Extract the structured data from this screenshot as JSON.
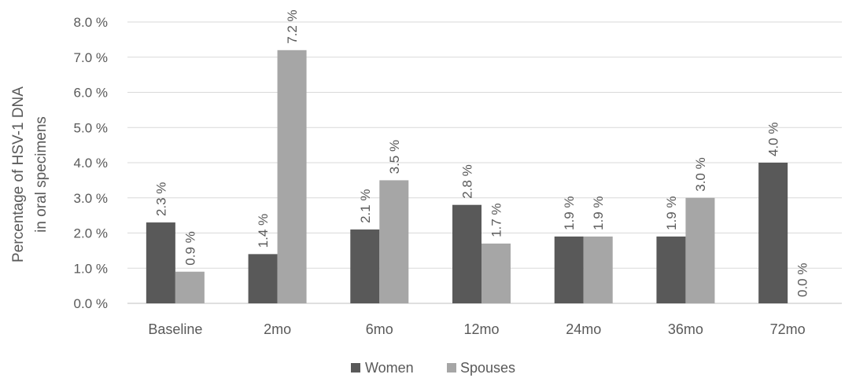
{
  "chart_data": {
    "type": "bar",
    "categories": [
      "Baseline",
      "2mo",
      "6mo",
      "12mo",
      "24mo",
      "36mo",
      "72mo"
    ],
    "series": [
      {
        "name": "Women",
        "color": "#595959",
        "values": [
          2.3,
          1.4,
          2.1,
          2.8,
          1.9,
          1.9,
          4.0
        ],
        "labels": [
          "2.3 %",
          "1.4 %",
          "2.1 %",
          "2.8 %",
          "1.9 %",
          "1.9 %",
          "4.0 %"
        ]
      },
      {
        "name": "Spouses",
        "color": "#a6a6a6",
        "values": [
          0.9,
          7.2,
          3.5,
          1.7,
          1.9,
          3.0,
          0.0
        ],
        "labels": [
          "0.9 %",
          "7.2 %",
          "3.5 %",
          "1.7 %",
          "1.9 %",
          "3.0 %",
          "0.0 %"
        ]
      }
    ],
    "ylabel_lines": [
      "Percentage of HSV-1 DNA",
      "in oral specimens"
    ],
    "ylim": [
      0,
      8
    ],
    "yticks": [
      0,
      1,
      2,
      3,
      4,
      5,
      6,
      7,
      8
    ],
    "ytick_labels": [
      "0.0 %",
      "1.0 %",
      "2.0 %",
      "3.0 %",
      "4.0 %",
      "5.0 %",
      "6.0 %",
      "7.0 %",
      "8.0 %"
    ],
    "grid": true,
    "legend_position": "bottom"
  }
}
